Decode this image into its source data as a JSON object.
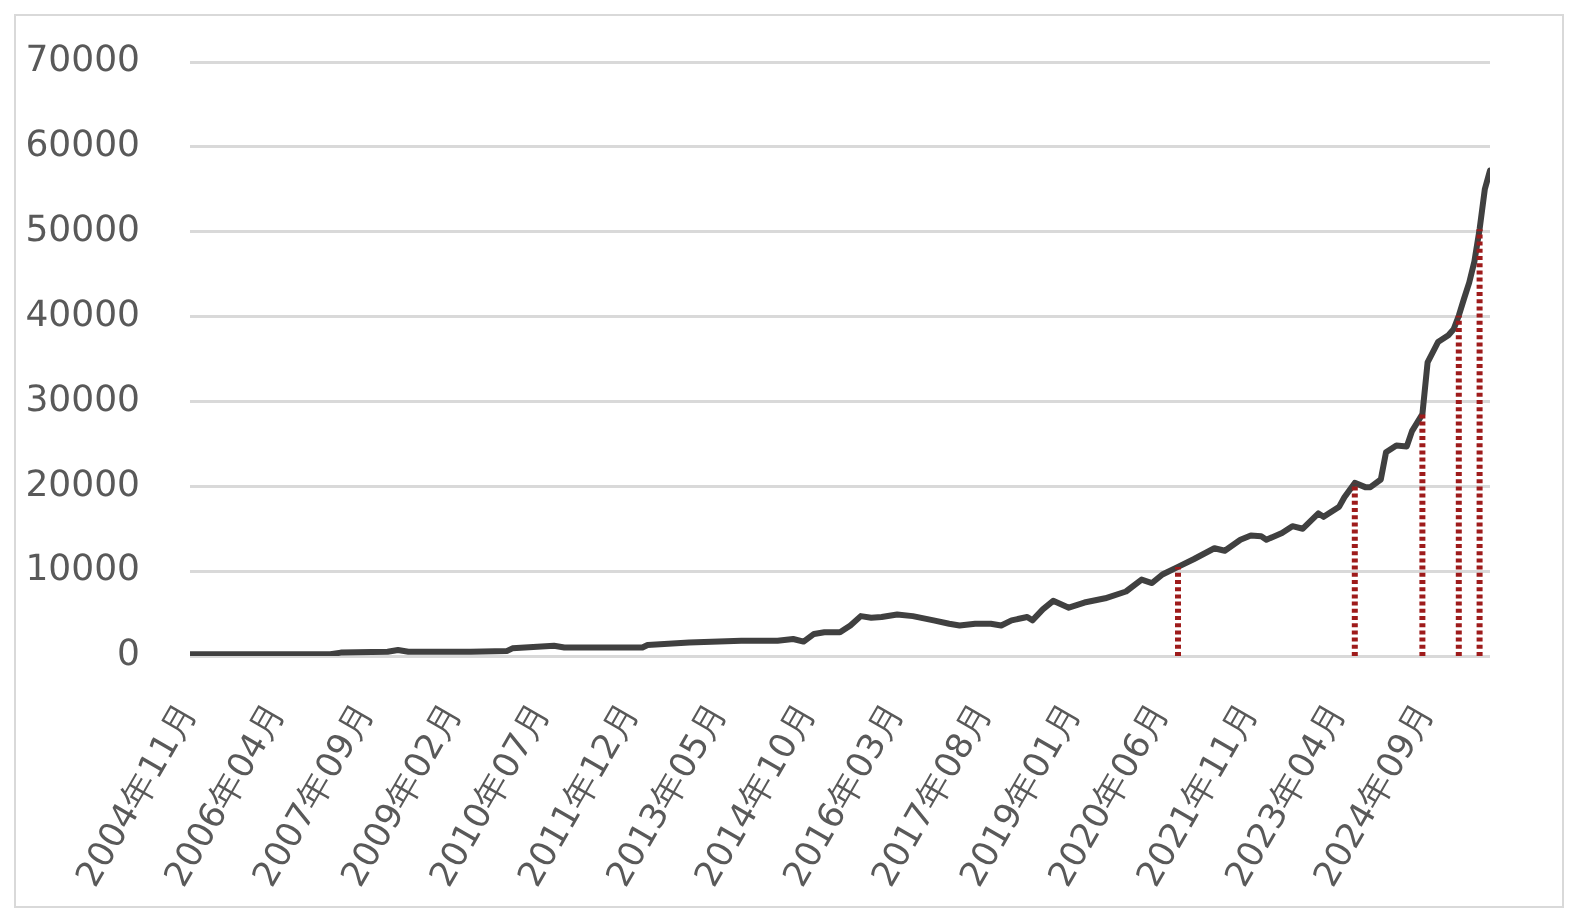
{
  "chart_data": {
    "type": "line",
    "x": [
      "2004-11",
      "2005-06",
      "2006-03",
      "2007-02",
      "2007-04",
      "2008-01",
      "2008-03",
      "2008-05",
      "2009-05",
      "2009-12",
      "2010-01",
      "2010-09",
      "2010-11",
      "2012-02",
      "2012-03",
      "2012-11",
      "2013-09",
      "2014-04",
      "2014-07",
      "2014-09",
      "2014-11",
      "2015-01",
      "2015-04",
      "2015-06",
      "2015-08",
      "2015-10",
      "2015-12",
      "2016-03",
      "2016-06",
      "2016-10",
      "2017-01",
      "2017-03",
      "2017-06",
      "2017-09",
      "2017-11",
      "2018-01",
      "2018-04",
      "2018-05",
      "2018-07",
      "2018-09",
      "2018-12",
      "2019-03",
      "2019-07",
      "2019-11",
      "2020-02",
      "2020-04",
      "2020-06",
      "2020-09",
      "2020-12",
      "2021-04",
      "2021-06",
      "2021-09",
      "2021-11",
      "2022-01",
      "2022-02",
      "2022-05",
      "2022-07",
      "2022-09",
      "2022-12",
      "2023-01",
      "2023-04",
      "2023-05",
      "2023-07",
      "2023-09",
      "2023-10",
      "2023-12",
      "2024-01",
      "2024-03",
      "2024-05",
      "2024-06",
      "2024-07",
      "2024-08",
      "2024-09",
      "2024-11",
      "2025-01",
      "2025-02",
      "2025-03",
      "2025-04",
      "2025-05",
      "2025-06",
      "2025-07",
      "2025-08",
      "2025-09"
    ],
    "series": [
      {
        "color": "#404040",
        "values": [
          200,
          200,
          200,
          200,
          400,
          500,
          700,
          500,
          500,
          600,
          900,
          1200,
          1000,
          1000,
          1300,
          1600,
          1800,
          1800,
          2000,
          1700,
          2600,
          2800,
          2800,
          3600,
          4700,
          4500,
          4600,
          4900,
          4700,
          4200,
          3800,
          3600,
          3800,
          3800,
          3600,
          4200,
          4600,
          4200,
          5500,
          6500,
          5700,
          6300,
          6800,
          7600,
          9000,
          8600,
          9600,
          10500,
          11400,
          12700,
          12400,
          13700,
          14200,
          14100,
          13700,
          14500,
          15300,
          15000,
          16800,
          16400,
          17600,
          18700,
          20400,
          19900,
          19900,
          20800,
          24000,
          24800,
          24700,
          26500,
          27500,
          28500,
          34600,
          37000,
          37800,
          38500,
          40100,
          42100,
          44000,
          46500,
          50300,
          55000,
          57200
        ]
      }
    ],
    "xlim": [
      "2004-11",
      "2025-09"
    ],
    "xticks": [
      {
        "value": "2004-11",
        "label": "2004年11月"
      },
      {
        "value": "2006-04",
        "label": "2006年04月"
      },
      {
        "value": "2007-09",
        "label": "2007年09月"
      },
      {
        "value": "2009-02",
        "label": "2009年02月"
      },
      {
        "value": "2010-07",
        "label": "2010年07月"
      },
      {
        "value": "2011-12",
        "label": "2011年12月"
      },
      {
        "value": "2013-05",
        "label": "2013年05月"
      },
      {
        "value": "2014-10",
        "label": "2014年10月"
      },
      {
        "value": "2016-03",
        "label": "2016年03月"
      },
      {
        "value": "2017-08",
        "label": "2017年08月"
      },
      {
        "value": "2019-01",
        "label": "2019年01月"
      },
      {
        "value": "2020-06",
        "label": "2020年06月"
      },
      {
        "value": "2021-11",
        "label": "2021年11月"
      },
      {
        "value": "2023-04",
        "label": "2023年04月"
      },
      {
        "value": "2024-09",
        "label": "2024年09月"
      }
    ],
    "ylim": [
      0,
      70000
    ],
    "yticks": [
      0,
      10000,
      20000,
      30000,
      40000,
      50000,
      60000,
      70000
    ],
    "grid": "y",
    "marker": "none",
    "line_style": "solid",
    "ref_lines": [
      {
        "axis": "x",
        "value": "2020-09",
        "color": "#9e1b1b",
        "line_style": "dotted"
      },
      {
        "axis": "x",
        "value": "2023-07",
        "color": "#9e1b1b",
        "line_style": "dotted"
      },
      {
        "axis": "x",
        "value": "2024-08",
        "color": "#9e1b1b",
        "line_style": "dotted"
      },
      {
        "axis": "x",
        "value": "2025-03",
        "color": "#9e1b1b",
        "line_style": "dotted"
      },
      {
        "axis": "x",
        "value": "2025-07",
        "color": "#9e1b1b",
        "line_style": "dotted"
      }
    ]
  }
}
